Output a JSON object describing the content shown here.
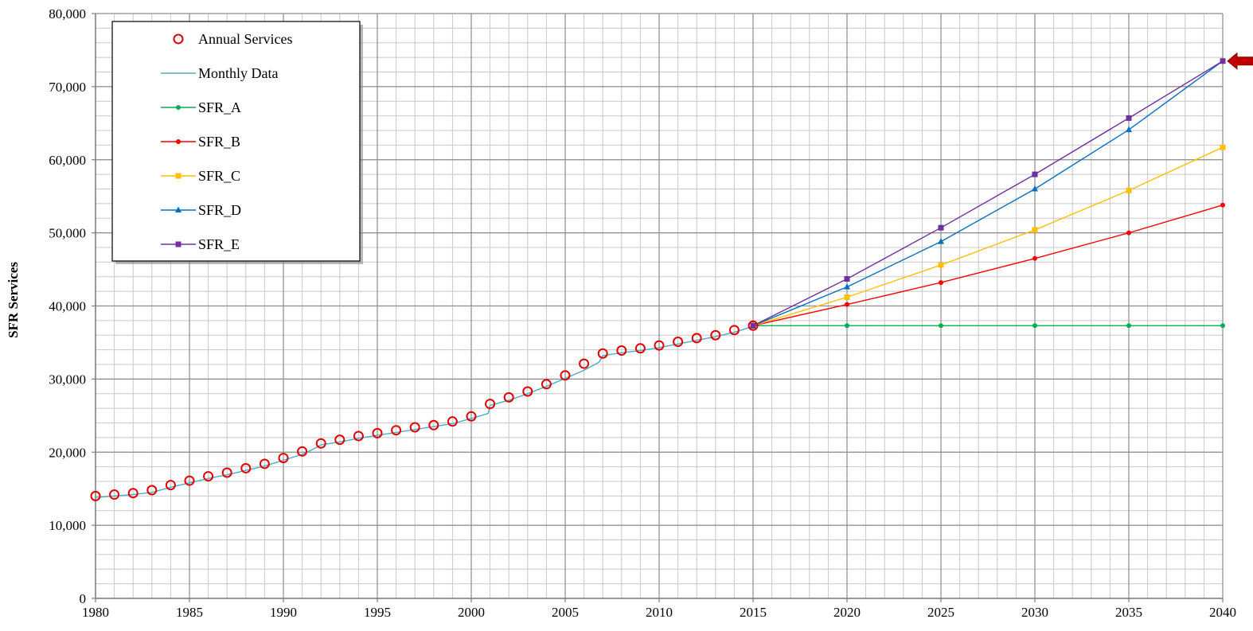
{
  "chart_data": {
    "type": "line",
    "xlabel": "",
    "ylabel": "SFR Services",
    "xlim": [
      1980,
      2040
    ],
    "ylim": [
      0,
      80000
    ],
    "x_ticks": [
      1980,
      1985,
      1990,
      1995,
      2000,
      2005,
      2010,
      2015,
      2020,
      2025,
      2030,
      2035,
      2040
    ],
    "x_tick_labels": [
      "1980",
      "1985",
      "1990",
      "1995",
      "2000",
      "2005",
      "2010",
      "2015",
      "2020",
      "2025",
      "2030",
      "2035",
      "2040"
    ],
    "y_ticks": [
      0,
      10000,
      20000,
      30000,
      40000,
      50000,
      60000,
      70000,
      80000
    ],
    "y_tick_labels": [
      "0",
      "10,000",
      "20,000",
      "30,000",
      "40,000",
      "50,000",
      "60,000",
      "70,000",
      "80,000"
    ],
    "grid": true,
    "legend_position": "top-left",
    "series": [
      {
        "name": "Annual Services",
        "kind": "circle-marker",
        "color": "#e00000",
        "x": [
          1980,
          1981,
          1982,
          1983,
          1984,
          1985,
          1986,
          1987,
          1988,
          1989,
          1990,
          1991,
          1992,
          1993,
          1994,
          1995,
          1996,
          1997,
          1998,
          1999,
          2000,
          2001,
          2002,
          2003,
          2004,
          2005,
          2006,
          2007,
          2008,
          2009,
          2010,
          2011,
          2012,
          2013,
          2014,
          2015
        ],
        "y": [
          14000,
          14200,
          14400,
          14800,
          15500,
          16100,
          16700,
          17200,
          17800,
          18400,
          19200,
          20100,
          21200,
          21700,
          22200,
          22600,
          23000,
          23400,
          23700,
          24200,
          24900,
          26600,
          27500,
          28300,
          29300,
          30500,
          32100,
          33500,
          33900,
          34200,
          34600,
          35100,
          35600,
          36000,
          36700,
          37300
        ]
      },
      {
        "name": "Monthly Data",
        "kind": "line",
        "color": "#4bacc6",
        "x": [
          1980,
          1981,
          1982,
          1983,
          1984,
          1985,
          1986,
          1987,
          1988,
          1989,
          1990,
          1991,
          1991.5,
          1992,
          1993,
          1994,
          1995,
          1996,
          1997,
          1998,
          1999,
          2000,
          2000.9,
          2001,
          2002,
          2003,
          2004,
          2005,
          2006,
          2006.8,
          2007,
          2008,
          2009,
          2010,
          2011,
          2012,
          2013,
          2014,
          2015
        ],
        "y": [
          13800,
          14000,
          14200,
          14500,
          15200,
          15800,
          16400,
          16900,
          17500,
          18100,
          18900,
          19700,
          20300,
          21000,
          21400,
          21900,
          22300,
          22700,
          23100,
          23500,
          23900,
          24600,
          25300,
          26400,
          27100,
          28000,
          29000,
          30100,
          31200,
          32300,
          33200,
          33600,
          33900,
          34300,
          34800,
          35300,
          35800,
          36400,
          37200
        ]
      },
      {
        "name": "SFR_A",
        "kind": "line-marker",
        "marker": "circle",
        "color": "#00b050",
        "x": [
          2015,
          2020,
          2025,
          2030,
          2035,
          2040
        ],
        "y": [
          37300,
          37300,
          37300,
          37300,
          37300,
          37300
        ]
      },
      {
        "name": "SFR_B",
        "kind": "line-marker",
        "marker": "circle",
        "color": "#ff0000",
        "x": [
          2015,
          2020,
          2025,
          2030,
          2035,
          2040
        ],
        "y": [
          37300,
          40200,
          43200,
          46500,
          50000,
          53800
        ]
      },
      {
        "name": "SFR_C",
        "kind": "line-marker",
        "marker": "square",
        "color": "#ffc000",
        "x": [
          2015,
          2020,
          2025,
          2030,
          2035,
          2040
        ],
        "y": [
          37300,
          41200,
          45600,
          50400,
          55800,
          61700
        ]
      },
      {
        "name": "SFR_D",
        "kind": "line-marker",
        "marker": "triangle",
        "color": "#0070c0",
        "x": [
          2015,
          2020,
          2025,
          2030,
          2035,
          2040
        ],
        "y": [
          37300,
          42600,
          48800,
          56000,
          64100,
          73500
        ]
      },
      {
        "name": "SFR_E",
        "kind": "line-marker",
        "marker": "square",
        "color": "#7030a0",
        "x": [
          2015,
          2020,
          2025,
          2030,
          2035,
          2040
        ],
        "y": [
          37300,
          43700,
          50700,
          58000,
          65700,
          73500
        ]
      }
    ],
    "annotations": [
      {
        "kind": "arrow",
        "color": "#c00000",
        "x": 2040,
        "y": 73500,
        "direction": "left"
      }
    ]
  }
}
